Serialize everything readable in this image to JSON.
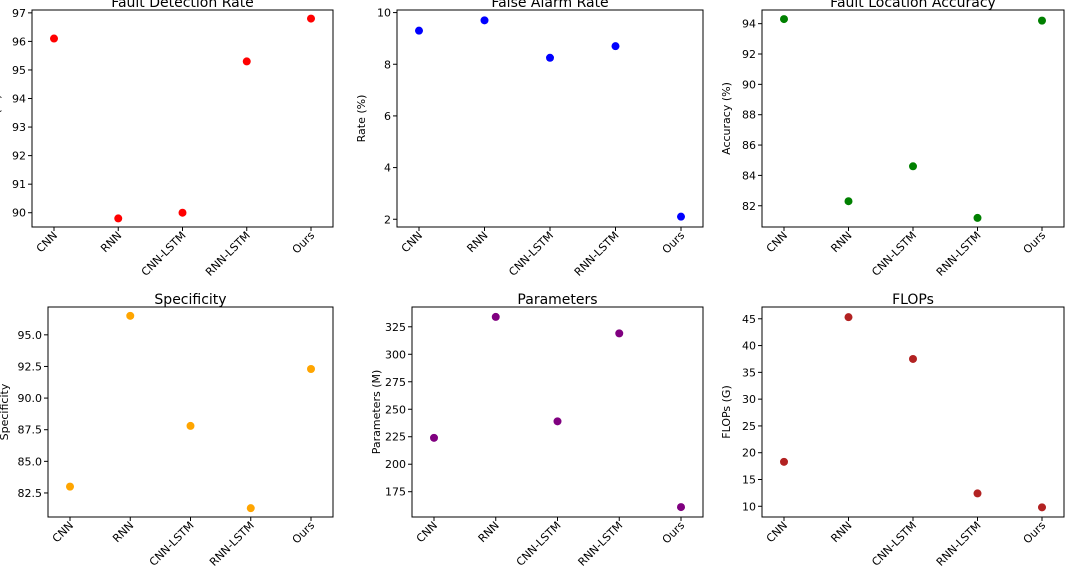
{
  "figure": {
    "background": "#ffffff"
  },
  "chart_data": [
    {
      "type": "scatter",
      "title": "Fault Detection Rate",
      "xlabel": "",
      "ylabel": "Rate (%)",
      "categories": [
        "CNN",
        "RNN",
        "CNN-LSTM",
        "RNN-LSTM",
        "Ours"
      ],
      "values": [
        96.1,
        89.8,
        90.0,
        95.3,
        96.8
      ],
      "ylim": [
        89.5,
        97.1
      ],
      "yticks": [
        90,
        91,
        92,
        93,
        94,
        95,
        96,
        97
      ],
      "ytick_labels": [
        "90",
        "91",
        "92",
        "93",
        "94",
        "95",
        "96",
        "97"
      ],
      "color": "#ff0000"
    },
    {
      "type": "scatter",
      "title": "False Alarm Rate",
      "xlabel": "",
      "ylabel": "Rate (%)",
      "categories": [
        "CNN",
        "RNN",
        "CNN-LSTM",
        "RNN-LSTM",
        "Ours"
      ],
      "values": [
        9.3,
        9.7,
        8.25,
        8.7,
        2.1
      ],
      "ylim": [
        1.7,
        10.1
      ],
      "yticks": [
        2,
        4,
        6,
        8,
        10
      ],
      "ytick_labels": [
        "2",
        "4",
        "6",
        "8",
        "10"
      ],
      "color": "#0000ff"
    },
    {
      "type": "scatter",
      "title": "Fault Location Accuracy",
      "xlabel": "",
      "ylabel": "Accuracy (%)",
      "categories": [
        "CNN",
        "RNN",
        "CNN-LSTM",
        "RNN-LSTM",
        "Ours"
      ],
      "values": [
        94.3,
        82.3,
        84.6,
        81.2,
        94.2
      ],
      "ylim": [
        80.6,
        94.9
      ],
      "yticks": [
        82,
        84,
        86,
        88,
        90,
        92,
        94
      ],
      "ytick_labels": [
        "82",
        "84",
        "86",
        "88",
        "90",
        "92",
        "94"
      ],
      "color": "#008000"
    },
    {
      "type": "scatter",
      "title": "Specificity",
      "xlabel": "",
      "ylabel": "Specificity",
      "categories": [
        "CNN",
        "RNN",
        "CNN-LSTM",
        "RNN-LSTM",
        "Ours"
      ],
      "values": [
        83.0,
        96.5,
        87.8,
        81.3,
        92.3
      ],
      "ylim": [
        80.6,
        97.2
      ],
      "yticks": [
        82.5,
        85.0,
        87.5,
        90.0,
        92.5,
        95.0
      ],
      "ytick_labels": [
        "82.5",
        "85.0",
        "87.5",
        "90.0",
        "92.5",
        "95.0"
      ],
      "color": "#ffa500"
    },
    {
      "type": "scatter",
      "title": "Parameters",
      "xlabel": "",
      "ylabel": "Parameters (M)",
      "categories": [
        "CNN",
        "RNN",
        "CNN-LSTM",
        "RNN-LSTM",
        "Ours"
      ],
      "values": [
        224,
        334,
        239,
        319,
        161
      ],
      "ylim": [
        152,
        343
      ],
      "yticks": [
        175,
        200,
        225,
        250,
        275,
        300,
        325
      ],
      "ytick_labels": [
        "175",
        "200",
        "225",
        "250",
        "275",
        "300",
        "325"
      ],
      "color": "#800080"
    },
    {
      "type": "scatter",
      "title": "FLOPs",
      "xlabel": "",
      "ylabel": "FLOPs (G)",
      "categories": [
        "CNN",
        "RNN",
        "CNN-LSTM",
        "RNN-LSTM",
        "Ours"
      ],
      "values": [
        18.3,
        45.3,
        37.5,
        12.4,
        9.8
      ],
      "ylim": [
        8.0,
        47.2
      ],
      "yticks": [
        10,
        15,
        20,
        25,
        30,
        35,
        40,
        45
      ],
      "ytick_labels": [
        "10",
        "15",
        "20",
        "25",
        "30",
        "35",
        "40",
        "45"
      ],
      "color": "#b22222"
    }
  ]
}
